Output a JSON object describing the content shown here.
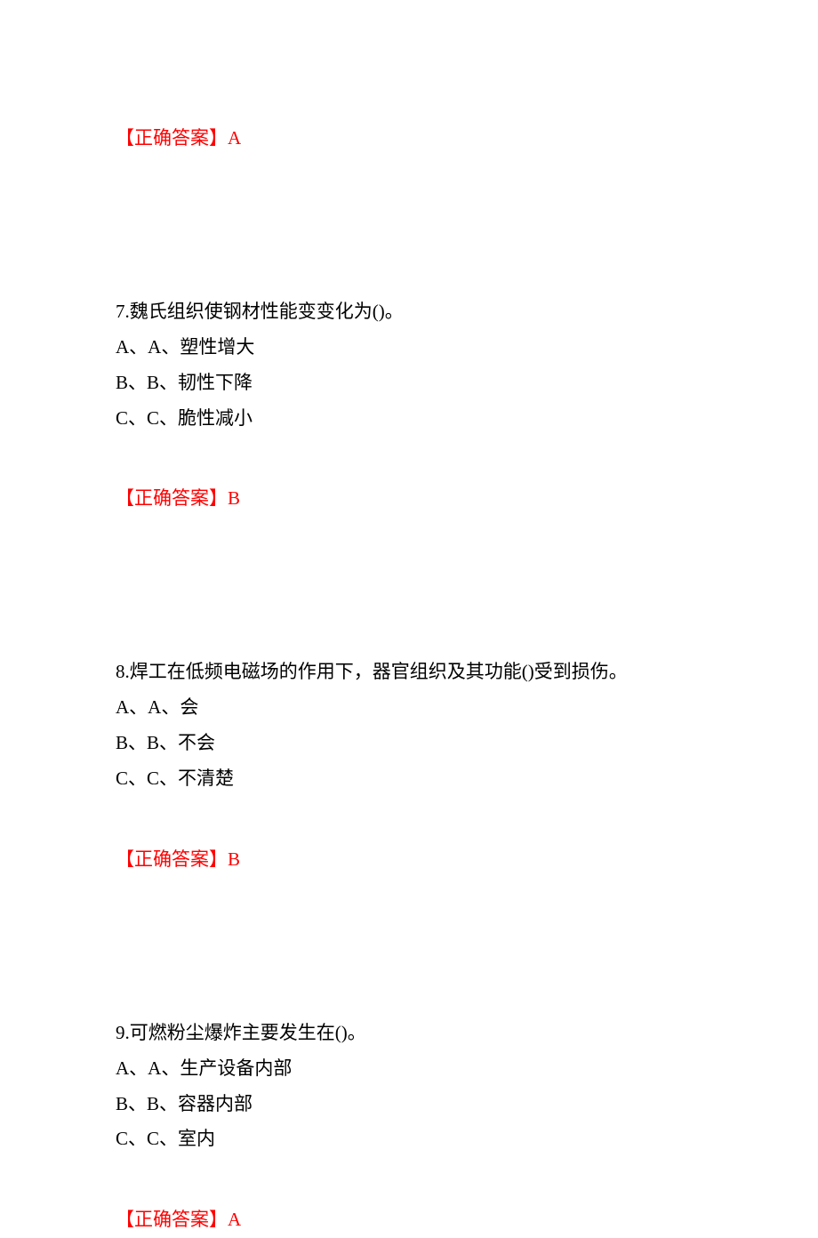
{
  "answer_label_prefix": "【正确答案】",
  "q6": {
    "answer": "A"
  },
  "q7": {
    "number": "7.",
    "text": "魏氏组织使钢材性能变变化为()。",
    "options": {
      "a": "A、A、塑性增大",
      "b": "B、B、韧性下降",
      "c": "C、C、脆性减小"
    },
    "answer": "B"
  },
  "q8": {
    "number": "8.",
    "text": "焊工在低频电磁场的作用下，器官组织及其功能()受到损伤。",
    "options": {
      "a": "A、A、会",
      "b": "B、B、不会",
      "c": "C、C、不清楚"
    },
    "answer": "B"
  },
  "q9": {
    "number": "9.",
    "text": "可燃粉尘爆炸主要发生在()。",
    "options": {
      "a": "A、A、生产设备内部",
      "b": "B、B、容器内部",
      "c": "C、C、室内"
    },
    "answer": "A"
  },
  "colors": {
    "answer_color": "#ff0000",
    "text_color": "#000000",
    "background": "#ffffff"
  },
  "typography": {
    "font_family": "SimSun",
    "font_size_pt": 16,
    "line_height": 1.9
  }
}
